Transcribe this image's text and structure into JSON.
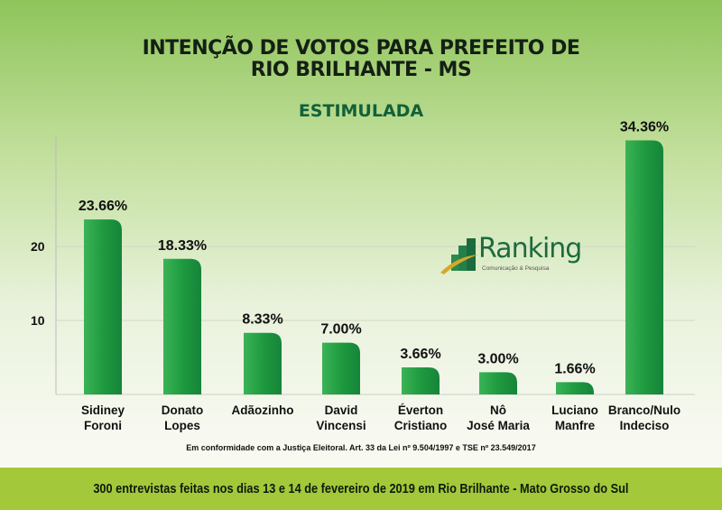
{
  "chart_data": {
    "type": "bar",
    "title": "INTENÇÃO DE VOTOS PARA PREFEITO DE RIO BRILHANTE - MS",
    "subtitle": "ESTIMULADA",
    "categories": [
      [
        "Sidiney",
        "Foroni"
      ],
      [
        "Donato",
        "Lopes"
      ],
      [
        "Adãozinho"
      ],
      [
        "David",
        "Vincensi"
      ],
      [
        "Éverton",
        "Cristiano"
      ],
      [
        "Nô",
        "José Maria"
      ],
      [
        "Luciano",
        "Manfre"
      ],
      [
        "Branco/Nulo",
        "Indeciso"
      ]
    ],
    "values": [
      23.66,
      18.33,
      8.33,
      7.0,
      3.66,
      3.0,
      1.66,
      34.36
    ],
    "labels": [
      "23.66%",
      "18.33%",
      "8.33%",
      "7.00%",
      "3.66%",
      "3.00%",
      "1.66%",
      "34.36%"
    ],
    "yticks": [
      10,
      20
    ],
    "ylim": [
      0,
      36
    ],
    "grid": true,
    "bar_color": "#1f9a3f"
  },
  "title_line1": "INTENÇÃO DE VOTOS PARA PREFEITO DE",
  "title_line2": "RIO BRILHANTE - MS",
  "note": "Em conformidade com a Justiça Eleitoral. Art. 33 da Lei nº 9.504/1997 e TSE nº 23.549/2017",
  "footer": "300 entrevistas feitas nos dias 13 e 14 de fevereiro de 2019 em Rio Brilhante - Mato Grosso do Sul",
  "logo": {
    "name": "Ranking",
    "tagline": "Comunicação & Pesquisa"
  }
}
